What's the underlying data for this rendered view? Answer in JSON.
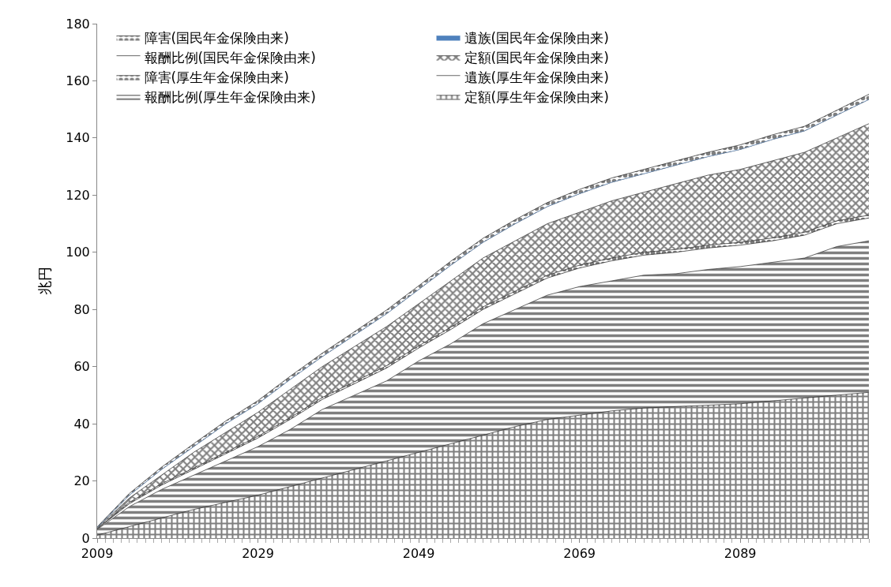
{
  "chart_data": {
    "type": "area",
    "stacked": true,
    "ylabel": "兆円",
    "x": [
      2009,
      2013,
      2017,
      2021,
      2025,
      2029,
      2033,
      2037,
      2041,
      2045,
      2049,
      2053,
      2057,
      2061,
      2065,
      2069,
      2073,
      2077,
      2081,
      2085,
      2089,
      2093,
      2097,
      2101,
      2105
    ],
    "xlim": [
      2009,
      2105
    ],
    "xticks": [
      2009,
      2029,
      2049,
      2069,
      2089
    ],
    "ylim": [
      0,
      180
    ],
    "yticks": [
      0,
      20,
      40,
      60,
      80,
      100,
      120,
      140,
      160,
      180
    ],
    "legend": "top left",
    "series": [
      {
        "name": "定額(厚生年金保険由来)",
        "color": "#000000",
        "values": [
          1,
          4,
          7,
          10,
          12.5,
          15,
          18,
          21,
          24,
          27,
          30,
          33,
          36,
          39,
          41.5,
          43,
          44.5,
          45.5,
          46,
          46.5,
          47,
          48,
          49,
          50,
          51
        ]
      },
      {
        "name": "報酬比例(厚生年金保険由来)",
        "color": "#000000",
        "values": [
          2,
          7,
          10,
          12,
          14.5,
          17,
          20,
          24,
          26,
          28,
          32,
          35,
          39,
          41,
          43.5,
          45,
          45.5,
          46.5,
          46.5,
          47.5,
          48,
          48.5,
          49,
          52,
          53
        ]
      },
      {
        "name": "遺族(厚生年金保険由来)",
        "color": "#ffffff",
        "values": [
          0.2,
          1,
          1.5,
          2,
          2.5,
          3,
          3.5,
          3.5,
          4,
          4.5,
          4.5,
          5,
          5,
          5.5,
          6,
          6.5,
          7,
          7,
          7.5,
          7.5,
          7.5,
          7.5,
          8,
          8,
          8
        ]
      },
      {
        "name": "障害(厚生年金保険由来)",
        "color": "#000000",
        "values": [
          0.1,
          0.5,
          0.5,
          0.5,
          0.5,
          0.6,
          0.6,
          0.7,
          0.7,
          0.8,
          0.8,
          0.8,
          0.9,
          0.9,
          1,
          1,
          1,
          1,
          1,
          1,
          1,
          1,
          1,
          1,
          1
        ]
      },
      {
        "name": "定額(国民年金保険由来)",
        "color": "#000000",
        "values": [
          0.2,
          1.5,
          3,
          5.5,
          7,
          8.4,
          9.9,
          10.8,
          12.3,
          13.7,
          14.7,
          16.2,
          17.1,
          17.6,
          18,
          18.5,
          20,
          21,
          23,
          24.5,
          25.5,
          27,
          28,
          29,
          32
        ]
      },
      {
        "name": "報酬比例(国民年金保険由来)",
        "color": "#ffffff",
        "values": [
          0.2,
          1,
          2,
          2,
          3,
          3,
          3.5,
          3.5,
          4,
          4.5,
          5,
          5.5,
          5.5,
          6,
          6,
          6.5,
          6.5,
          6.5,
          6.5,
          6.5,
          7,
          7.5,
          7.5,
          8,
          8.5
        ]
      },
      {
        "name": "遺族(国民年金保険由来)",
        "color": "#4f81bd",
        "values": [
          null,
          null,
          null,
          null,
          null,
          null,
          null,
          null,
          null,
          null,
          null,
          null,
          null,
          null,
          null,
          null,
          null,
          null,
          null,
          null,
          null,
          null,
          null,
          null,
          null
        ]
      },
      {
        "name": "障害(国民年金保険由来)",
        "color": "#000000",
        "values": [
          0.2,
          0.6,
          0.8,
          1,
          1,
          1.1,
          1.1,
          1.2,
          1.2,
          1.3,
          1.3,
          1.4,
          1.4,
          1.4,
          1.4,
          1.5,
          1.5,
          1.5,
          1.5,
          1.5,
          1.6,
          1.6,
          1.6,
          1.7,
          1.8
        ]
      }
    ]
  }
}
